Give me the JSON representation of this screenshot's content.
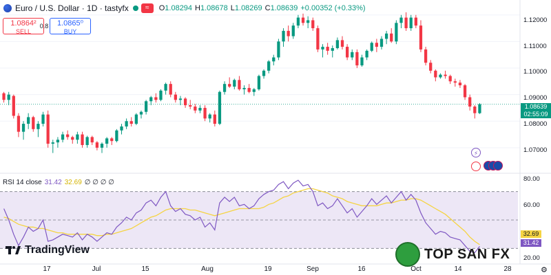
{
  "header": {
    "symbol_title": "Euro / U.S. Dollar · 1D · tastyfx",
    "indicator_chip": "≈",
    "ohlc": [
      {
        "key": "O",
        "value": "1.08294"
      },
      {
        "key": "H",
        "value": "1.08678"
      },
      {
        "key": "L",
        "value": "1.08269"
      },
      {
        "key": "C",
        "value": "1.08639"
      }
    ],
    "change": "+0.00352 (+0.33%)"
  },
  "trade": {
    "sell_price": "1.0864²",
    "sell_label": "SELL",
    "spread": "0.8",
    "buy_price": "1.0865⁰",
    "buy_label": "BUY"
  },
  "price_axis": [
    "1.12000",
    "1.11000",
    "1.10000",
    "1.09000",
    "1.08000",
    "1.07000"
  ],
  "rsi_axis": [
    "80.00",
    "60.00",
    "20.00"
  ],
  "last_price": {
    "price": "1.08639",
    "countdown": "02:55:09"
  },
  "rsi": {
    "legend_name": "RSI 14 close",
    "rsi_value": "31.42",
    "ma_value": "32.69",
    "extra": "∅ ∅ ∅ ∅",
    "tag_ma": "32.69",
    "tag_rsi": "31.42"
  },
  "time_axis": [
    "17",
    "Jul",
    "15",
    "Aug",
    "19",
    "Sep",
    "16",
    "Oct",
    "14",
    "28"
  ],
  "branding": {
    "logo_text": "TradingView",
    "watermark": "TOP SAN FX"
  },
  "colors": {
    "up": "#089981",
    "down": "#f23645",
    "rsi_line": "#7e57c2",
    "rsi_ma": "#f5d442",
    "rsi_band": "#ede7f6"
  },
  "chart_data": {
    "type": "candlestick",
    "price_range": [
      1.064,
      1.122
    ],
    "rsi_range": [
      20,
      80
    ],
    "rsi_levels": [
      70,
      50,
      30
    ],
    "candles": [
      [
        1.0905,
        1.091,
        1.087,
        1.088
      ],
      [
        1.088,
        1.091,
        1.086,
        1.09
      ],
      [
        1.0895,
        1.09,
        1.081,
        1.082
      ],
      [
        1.082,
        1.083,
        1.074,
        1.076
      ],
      [
        1.076,
        1.08,
        1.073,
        1.079
      ],
      [
        1.079,
        1.083,
        1.077,
        1.0815
      ],
      [
        1.0815,
        1.082,
        1.076,
        1.077
      ],
      [
        1.077,
        1.08,
        1.074,
        1.079
      ],
      [
        1.079,
        1.0835,
        1.078,
        1.0825
      ],
      [
        1.0825,
        1.084,
        1.07,
        1.0715
      ],
      [
        1.0715,
        1.073,
        1.068,
        1.072
      ],
      [
        1.072,
        1.074,
        1.07,
        1.073
      ],
      [
        1.073,
        1.076,
        1.072,
        1.075
      ],
      [
        1.075,
        1.0765,
        1.073,
        1.074
      ],
      [
        1.074,
        1.0745,
        1.0715,
        1.073
      ],
      [
        1.073,
        1.076,
        1.0715,
        1.075
      ],
      [
        1.075,
        1.076,
        1.07,
        1.071
      ],
      [
        1.071,
        1.0745,
        1.07,
        1.074
      ],
      [
        1.074,
        1.0745,
        1.071,
        1.072
      ],
      [
        1.072,
        1.0725,
        1.069,
        1.07
      ],
      [
        1.07,
        1.072,
        1.068,
        1.0715
      ],
      [
        1.0715,
        1.074,
        1.07,
        1.0735
      ],
      [
        1.0735,
        1.074,
        1.071,
        1.0725
      ],
      [
        1.0725,
        1.077,
        1.072,
        1.0765
      ],
      [
        1.0765,
        1.079,
        1.075,
        1.078
      ],
      [
        1.078,
        1.081,
        1.077,
        1.08
      ],
      [
        1.08,
        1.0815,
        1.078,
        1.079
      ],
      [
        1.079,
        1.083,
        1.0785,
        1.0825
      ],
      [
        1.0825,
        1.084,
        1.081,
        1.0835
      ],
      [
        1.0835,
        1.088,
        1.0825,
        1.0875
      ],
      [
        1.0875,
        1.0895,
        1.086,
        1.089
      ],
      [
        1.089,
        1.0905,
        1.087,
        1.088
      ],
      [
        1.088,
        1.092,
        1.0875,
        1.0915
      ],
      [
        1.0915,
        1.0945,
        1.09,
        1.094
      ],
      [
        1.094,
        1.095,
        1.089,
        1.09
      ],
      [
        1.09,
        1.091,
        1.087,
        1.088
      ],
      [
        1.088,
        1.0895,
        1.086,
        1.0885
      ],
      [
        1.0885,
        1.089,
        1.085,
        1.086
      ],
      [
        1.086,
        1.088,
        1.0845,
        1.0855
      ],
      [
        1.0855,
        1.0865,
        1.083,
        1.084
      ],
      [
        1.084,
        1.086,
        1.083,
        1.085
      ],
      [
        1.085,
        1.086,
        1.08,
        1.081
      ],
      [
        1.081,
        1.083,
        1.0795,
        1.0825
      ],
      [
        1.0825,
        1.084,
        1.078,
        1.079
      ],
      [
        1.079,
        1.0915,
        1.0785,
        1.091
      ],
      [
        1.091,
        1.095,
        1.09,
        1.094
      ],
      [
        1.094,
        1.0965,
        1.0925,
        1.093
      ],
      [
        1.093,
        1.096,
        1.092,
        1.0955
      ],
      [
        1.0955,
        1.097,
        1.0915,
        1.092
      ],
      [
        1.092,
        1.0935,
        1.09,
        1.0925
      ],
      [
        1.0925,
        1.094,
        1.0905,
        1.091
      ],
      [
        1.091,
        1.0925,
        1.0895,
        1.092
      ],
      [
        1.092,
        1.0975,
        1.0915,
        1.097
      ],
      [
        1.097,
        1.0995,
        1.096,
        1.099
      ],
      [
        1.099,
        1.103,
        1.098,
        1.1025
      ],
      [
        1.1025,
        1.105,
        1.101,
        1.104
      ],
      [
        1.104,
        1.111,
        1.103,
        1.11
      ],
      [
        1.11,
        1.115,
        1.108,
        1.114
      ],
      [
        1.114,
        1.116,
        1.11,
        1.112
      ],
      [
        1.112,
        1.117,
        1.111,
        1.116
      ],
      [
        1.116,
        1.12,
        1.115,
        1.119
      ],
      [
        1.119,
        1.1205,
        1.116,
        1.117
      ],
      [
        1.117,
        1.1195,
        1.115,
        1.118
      ],
      [
        1.118,
        1.119,
        1.114,
        1.115
      ],
      [
        1.115,
        1.116,
        1.106,
        1.107
      ],
      [
        1.107,
        1.109,
        1.104,
        1.108
      ],
      [
        1.108,
        1.1095,
        1.105,
        1.1065
      ],
      [
        1.1065,
        1.1085,
        1.104,
        1.1075
      ],
      [
        1.1075,
        1.1115,
        1.107,
        1.1105
      ],
      [
        1.1105,
        1.112,
        1.107,
        1.108
      ],
      [
        1.108,
        1.109,
        1.103,
        1.104
      ],
      [
        1.104,
        1.107,
        1.103,
        1.106
      ],
      [
        1.106,
        1.107,
        1.1,
        1.101
      ],
      [
        1.101,
        1.105,
        1.1005,
        1.104
      ],
      [
        1.104,
        1.107,
        1.103,
        1.1065
      ],
      [
        1.1065,
        1.11,
        1.106,
        1.1095
      ],
      [
        1.1095,
        1.111,
        1.106,
        1.108
      ],
      [
        1.108,
        1.112,
        1.107,
        1.111
      ],
      [
        1.111,
        1.114,
        1.109,
        1.113
      ],
      [
        1.113,
        1.115,
        1.1095,
        1.11
      ],
      [
        1.11,
        1.118,
        1.109,
        1.117
      ],
      [
        1.117,
        1.12,
        1.115,
        1.119
      ],
      [
        1.119,
        1.121,
        1.114,
        1.115
      ],
      [
        1.115,
        1.12,
        1.114,
        1.119
      ],
      [
        1.119,
        1.12,
        1.115,
        1.116
      ],
      [
        1.116,
        1.118,
        1.106,
        1.107
      ],
      [
        1.107,
        1.108,
        1.101,
        1.102
      ],
      [
        1.102,
        1.103,
        1.098,
        1.099
      ],
      [
        1.099,
        1.0995,
        1.095,
        1.0965
      ],
      [
        1.0965,
        1.098,
        1.096,
        1.0975
      ],
      [
        1.0975,
        1.099,
        1.096,
        1.097
      ],
      [
        1.097,
        1.0975,
        1.094,
        1.095
      ],
      [
        1.095,
        1.096,
        1.093,
        1.0945
      ],
      [
        1.0945,
        1.0955,
        1.0925,
        1.0935
      ],
      [
        1.0935,
        1.094,
        1.088,
        1.089
      ],
      [
        1.089,
        1.09,
        1.084,
        1.0855
      ],
      [
        1.0855,
        1.086,
        1.081,
        1.083
      ],
      [
        1.083,
        1.0868,
        1.0827,
        1.0864
      ]
    ],
    "rsi": [
      58,
      50,
      40,
      32,
      38,
      45,
      42,
      44,
      50,
      35,
      36,
      38,
      40,
      39,
      38,
      41,
      36,
      40,
      38,
      35,
      38,
      41,
      40,
      45,
      48,
      52,
      50,
      55,
      57,
      62,
      64,
      60,
      66,
      70,
      60,
      56,
      58,
      54,
      53,
      50,
      52,
      45,
      48,
      43,
      62,
      66,
      63,
      66,
      60,
      61,
      58,
      60,
      65,
      68,
      70,
      71,
      75,
      77,
      72,
      76,
      78,
      74,
      75,
      70,
      60,
      62,
      58,
      60,
      65,
      60,
      55,
      58,
      52,
      56,
      60,
      65,
      61,
      64,
      67,
      62,
      66,
      70,
      64,
      68,
      64,
      55,
      48,
      44,
      40,
      42,
      41,
      38,
      37,
      36,
      32,
      28,
      27,
      31.42
    ],
    "rsi_ma": [
      52,
      51,
      49,
      47,
      46,
      45,
      45,
      44,
      44,
      43,
      42,
      41,
      41,
      40,
      40,
      40,
      40,
      40,
      40,
      39,
      39,
      40,
      40,
      41,
      42,
      43,
      44,
      46,
      48,
      50,
      52,
      53,
      55,
      57,
      58,
      58,
      58,
      58,
      57,
      57,
      56,
      55,
      54,
      53,
      54,
      55,
      56,
      57,
      58,
      58,
      58,
      58,
      58,
      59,
      61,
      62,
      64,
      66,
      67,
      69,
      70,
      71,
      72,
      72,
      71,
      70,
      69,
      67,
      66,
      65,
      63,
      62,
      61,
      60,
      60,
      60,
      60,
      61,
      62,
      62,
      63,
      64,
      64,
      65,
      65,
      64,
      62,
      60,
      58,
      56,
      54,
      51,
      48,
      45,
      42,
      38,
      35,
      32.69
    ]
  }
}
